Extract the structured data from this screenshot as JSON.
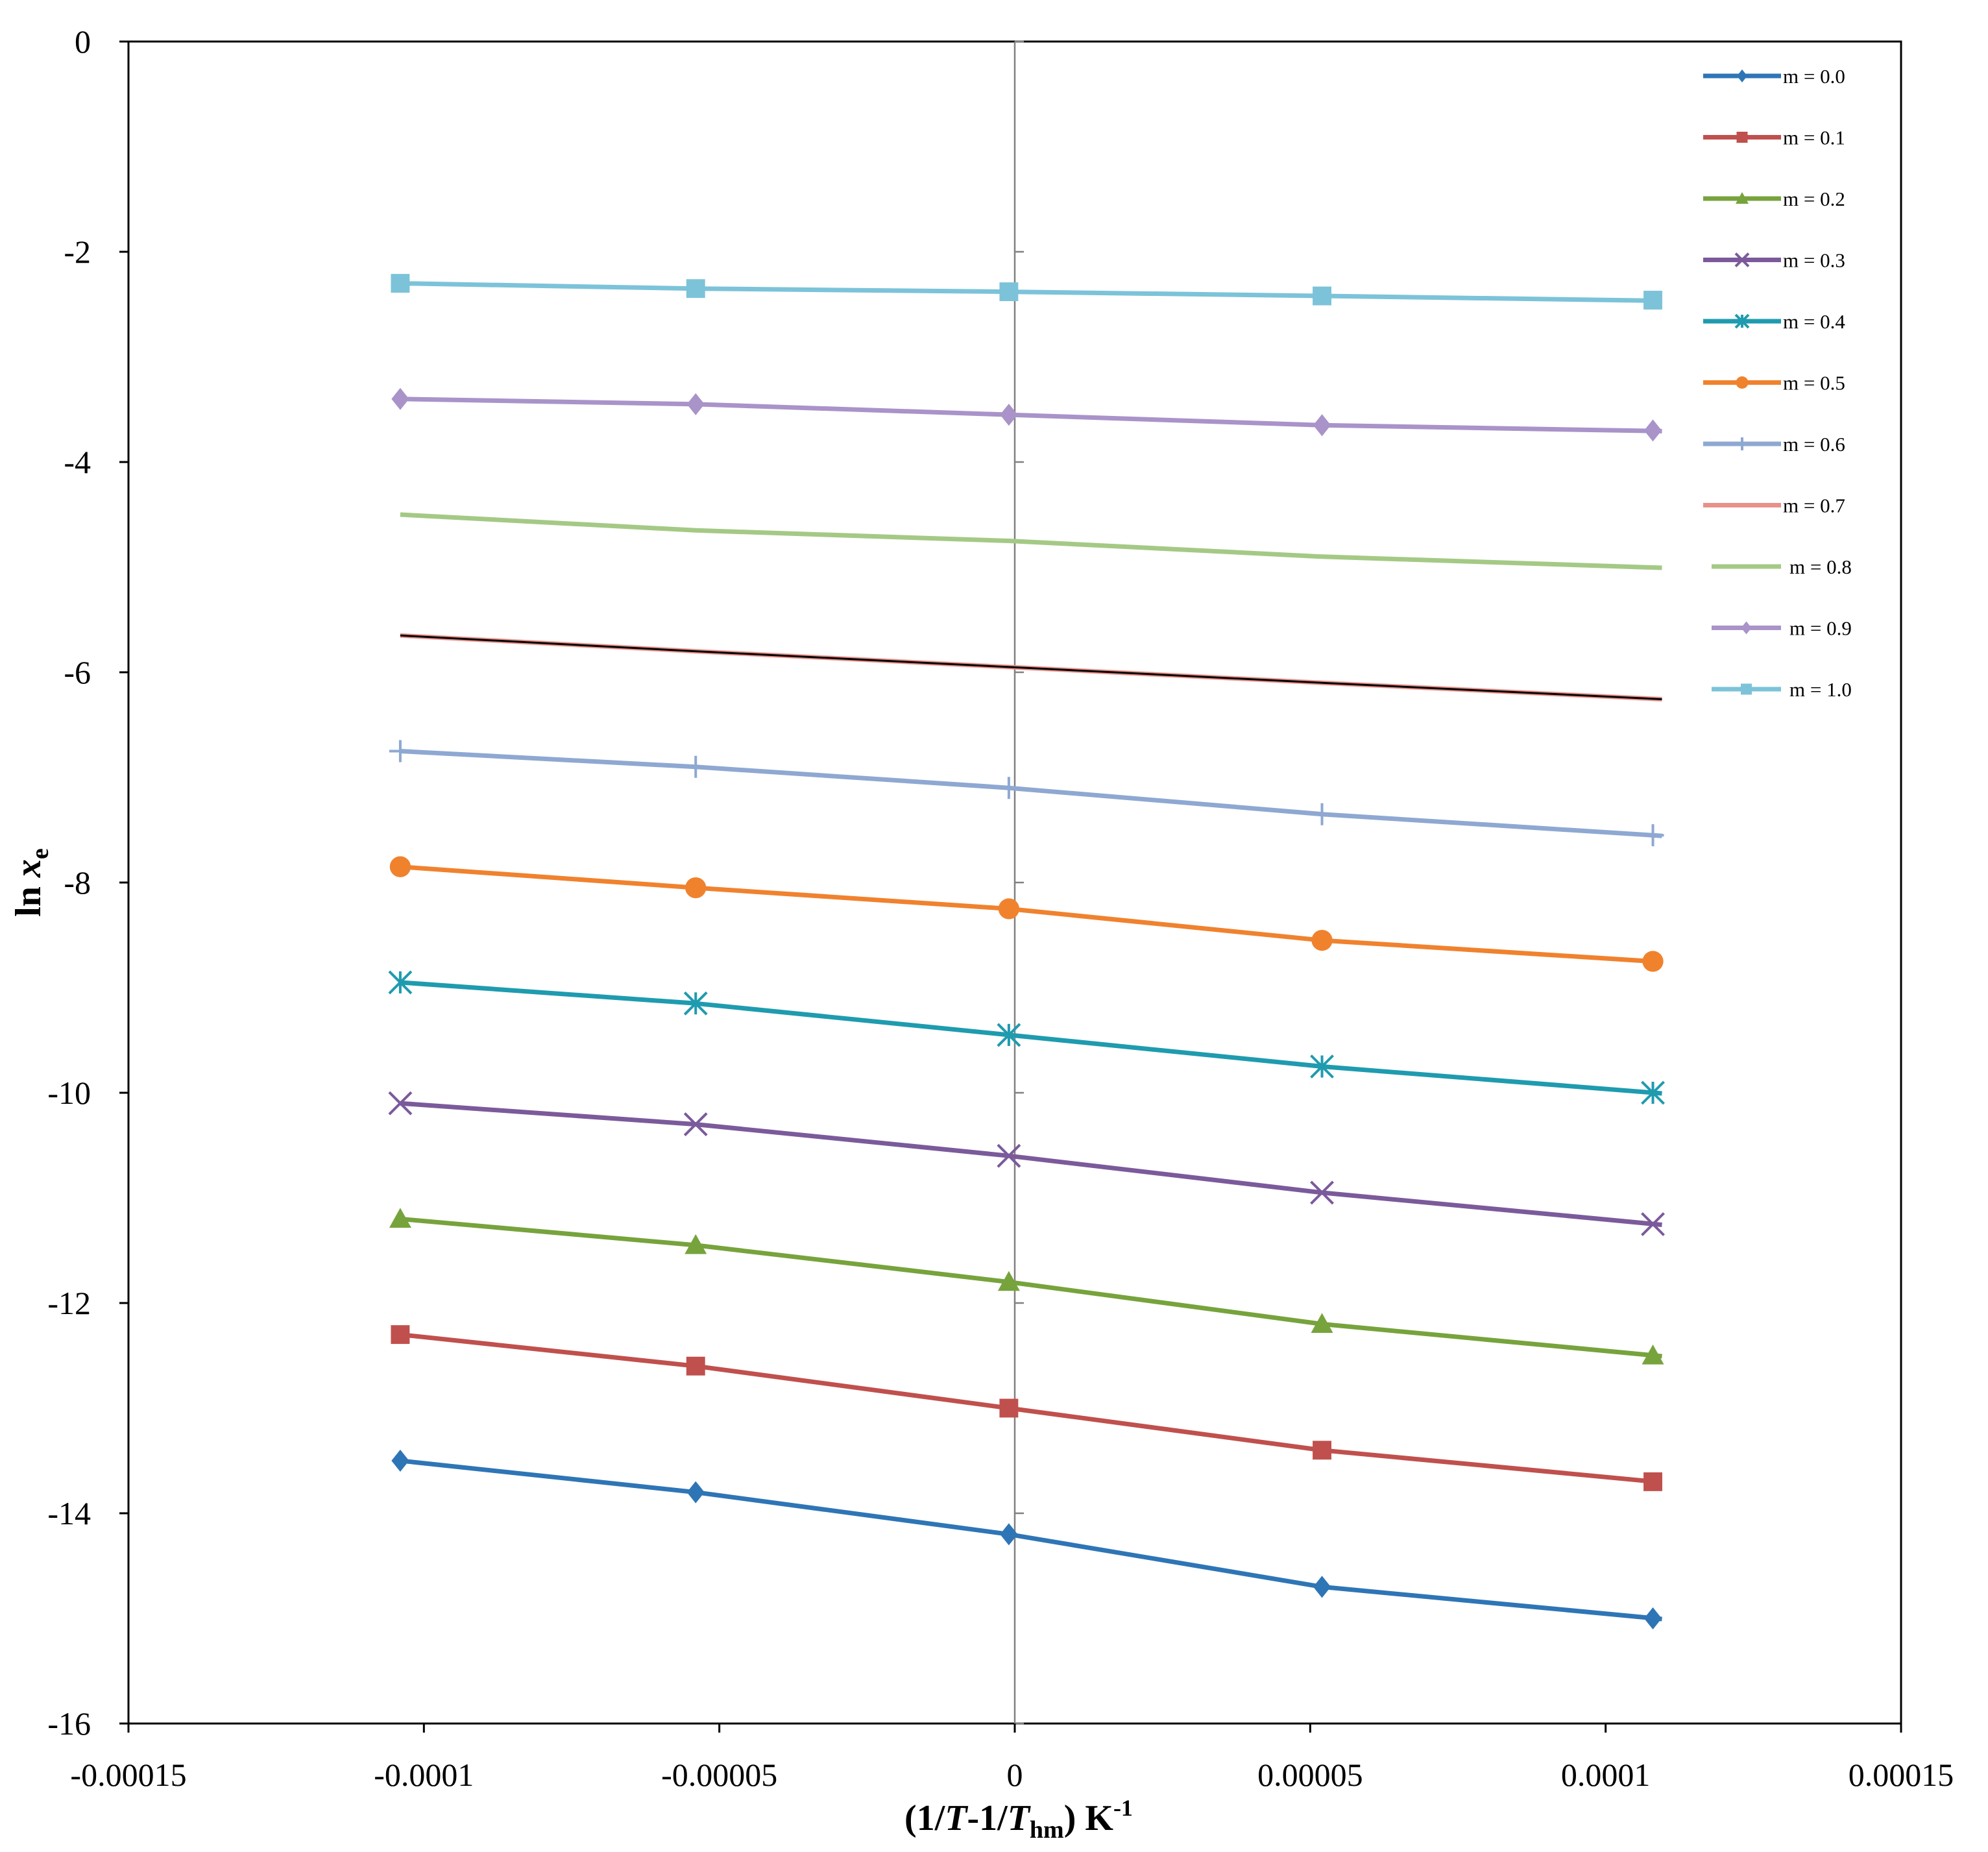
{
  "chart_data": {
    "type": "line",
    "title": "",
    "xlabel": "(1/T-1/Thm) K-1",
    "xlabel_parts": {
      "open": "(1/",
      "T1": "T",
      "mid": "-1/",
      "T2": "T",
      "sub": "hm",
      "close": ") K",
      "sup": "-1"
    },
    "ylabel": "ln xe",
    "ylabel_parts": {
      "ln": "ln ",
      "x": "x",
      "sub": "e"
    },
    "xlim": [
      -0.00015,
      0.00015
    ],
    "ylim": [
      -16,
      0
    ],
    "x_ticks": [
      "-0.00015",
      "-0.0001",
      "-0.00005",
      "0",
      "0.00005",
      "0.0001",
      "0.00015"
    ],
    "x_tick_values": [
      -0.00015,
      -0.0001,
      -5e-05,
      0,
      5e-05,
      0.0001,
      0.00015
    ],
    "y_ticks": [
      "0",
      "-2",
      "-4",
      "-6",
      "-8",
      "-10",
      "-12",
      "-14",
      "-16"
    ],
    "y_tick_values": [
      0,
      -2,
      -4,
      -6,
      -8,
      -10,
      -12,
      -14,
      -16
    ],
    "grid": false,
    "legend_position": "top-right",
    "x": [
      -0.000104,
      -5.4e-05,
      -1e-06,
      5.2e-05,
      0.000108
    ],
    "series": [
      {
        "name": "m = 0.0",
        "color": "#2E75B6",
        "marker": "diamond",
        "values": [
          -13.5,
          -13.8,
          -14.2,
          -14.7,
          -15.0
        ]
      },
      {
        "name": "m = 0.1",
        "color": "#C0504D",
        "marker": "square",
        "values": [
          -12.3,
          -12.6,
          -13.0,
          -13.4,
          -13.7
        ]
      },
      {
        "name": "m = 0.2",
        "color": "#77A33C",
        "marker": "triangle",
        "values": [
          -11.2,
          -11.45,
          -11.8,
          -12.2,
          -12.5
        ]
      },
      {
        "name": "m = 0.3",
        "color": "#7B5A9B",
        "marker": "x",
        "values": [
          -10.1,
          -10.3,
          -10.6,
          -10.95,
          -11.25
        ]
      },
      {
        "name": "m = 0.4",
        "color": "#1F9BAF",
        "marker": "star",
        "values": [
          -8.95,
          -9.15,
          -9.45,
          -9.75,
          -10.0
        ]
      },
      {
        "name": "m = 0.5",
        "color": "#F0822E",
        "marker": "circle",
        "values": [
          -7.85,
          -8.05,
          -8.25,
          -8.55,
          -8.75
        ]
      },
      {
        "name": "m = 0.6",
        "color": "#8EA8D2",
        "marker": "plus",
        "values": [
          -6.75,
          -6.9,
          -7.1,
          -7.35,
          -7.55
        ]
      },
      {
        "name": "m = 0.7",
        "color": "#E8918B",
        "marker": "none",
        "overlay": "#000000",
        "values": [
          -5.65,
          -5.8,
          -5.95,
          -6.1,
          -6.25
        ]
      },
      {
        "name": "m = 0.8",
        "color": "#A4C985",
        "marker": "none",
        "values": [
          -4.5,
          -4.65,
          -4.75,
          -4.9,
          -5.0
        ]
      },
      {
        "name": "m = 0.9",
        "color": "#A993C9",
        "marker": "diamond",
        "values": [
          -3.4,
          -3.45,
          -3.55,
          -3.65,
          -3.7
        ]
      },
      {
        "name": "m = 1.0",
        "color": "#7CC3D9",
        "marker": "square",
        "values": [
          -2.3,
          -2.35,
          -2.38,
          -2.42,
          -2.46
        ]
      }
    ]
  }
}
